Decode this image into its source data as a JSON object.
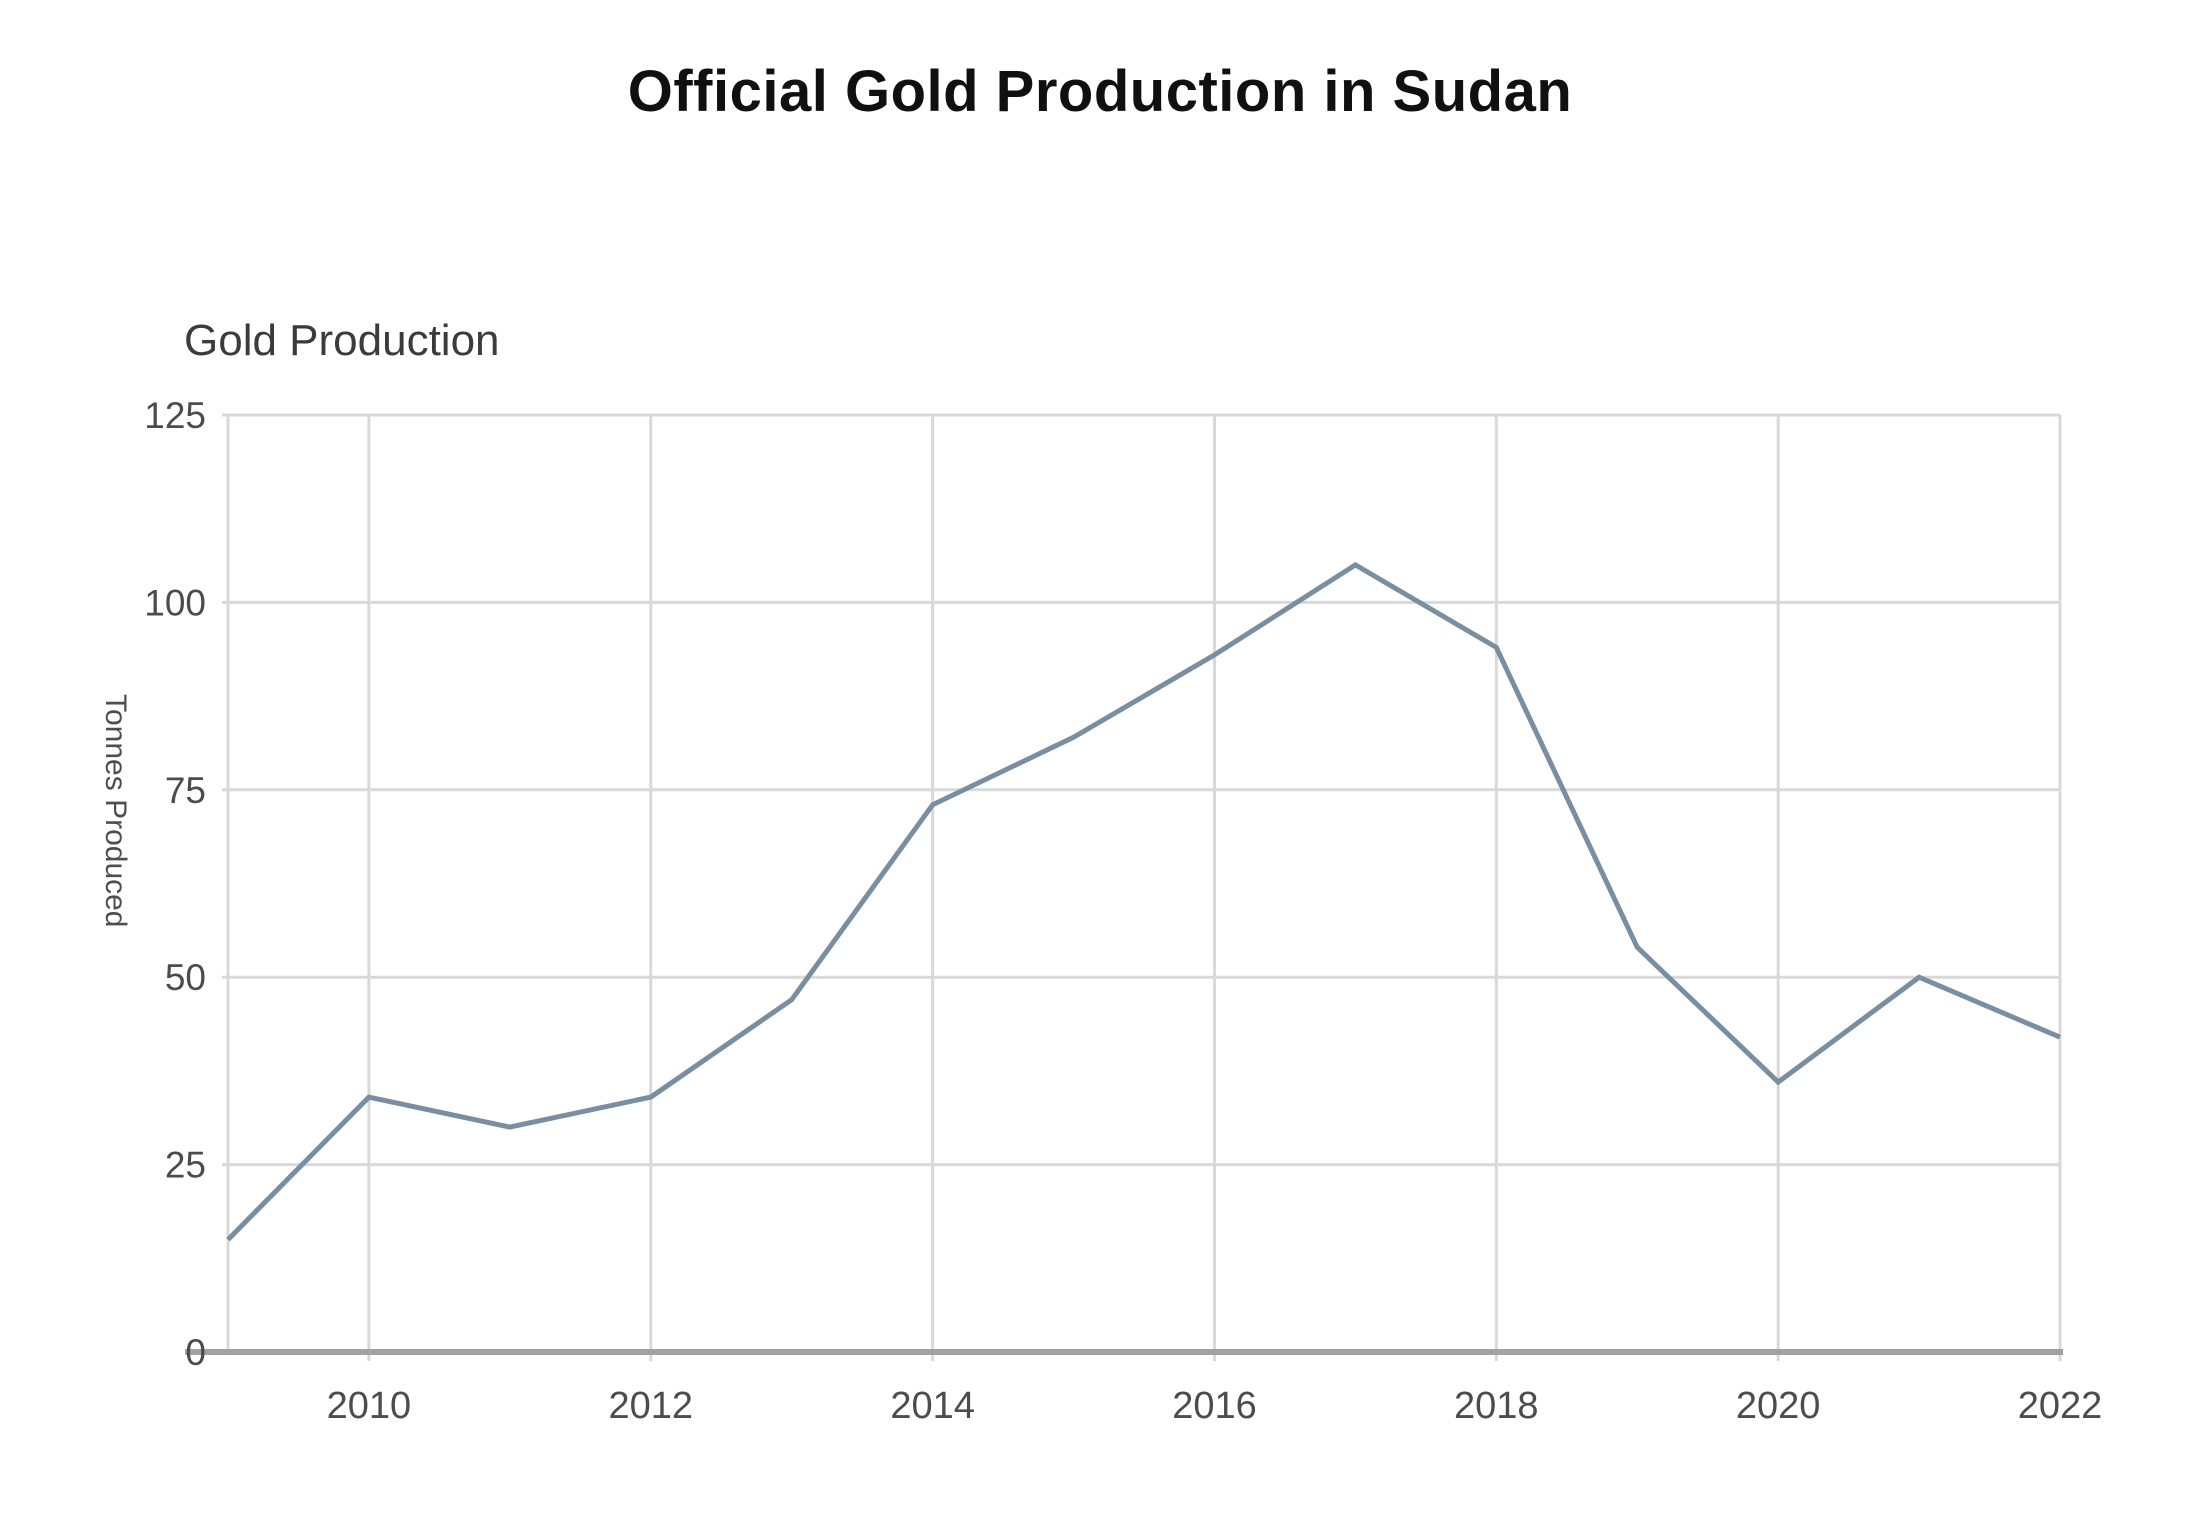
{
  "page": {
    "title": "Official Gold Production in Sudan"
  },
  "chart_data": {
    "type": "line",
    "title": "Official Gold Production in Sudan",
    "chart_title": "Gold Production",
    "ylabel": "Tonnes Produced",
    "xlabel": "",
    "x": [
      2009,
      2010,
      2011,
      2012,
      2013,
      2014,
      2015,
      2016,
      2017,
      2018,
      2019,
      2020,
      2021,
      2022
    ],
    "values": [
      15,
      34,
      30,
      34,
      47,
      73,
      82,
      93,
      105,
      94,
      54,
      36,
      50,
      42
    ],
    "series_name": "Gold Production",
    "units": "Tonnes",
    "x_ticks": [
      2010,
      2012,
      2014,
      2016,
      2018,
      2020,
      2022
    ],
    "y_ticks": [
      0,
      25,
      50,
      75,
      100,
      125
    ],
    "xlim": [
      2009,
      2022
    ],
    "ylim": [
      0,
      125
    ],
    "grid": true,
    "legend": "none",
    "colors": {
      "line": "#7a8ea1",
      "grid": "#d9d9d9",
      "axis": "#a2a2a2",
      "tick_text": "#4c4c4c",
      "chart_title_text": "#3b3b3b",
      "main_title_text": "#101010"
    }
  }
}
